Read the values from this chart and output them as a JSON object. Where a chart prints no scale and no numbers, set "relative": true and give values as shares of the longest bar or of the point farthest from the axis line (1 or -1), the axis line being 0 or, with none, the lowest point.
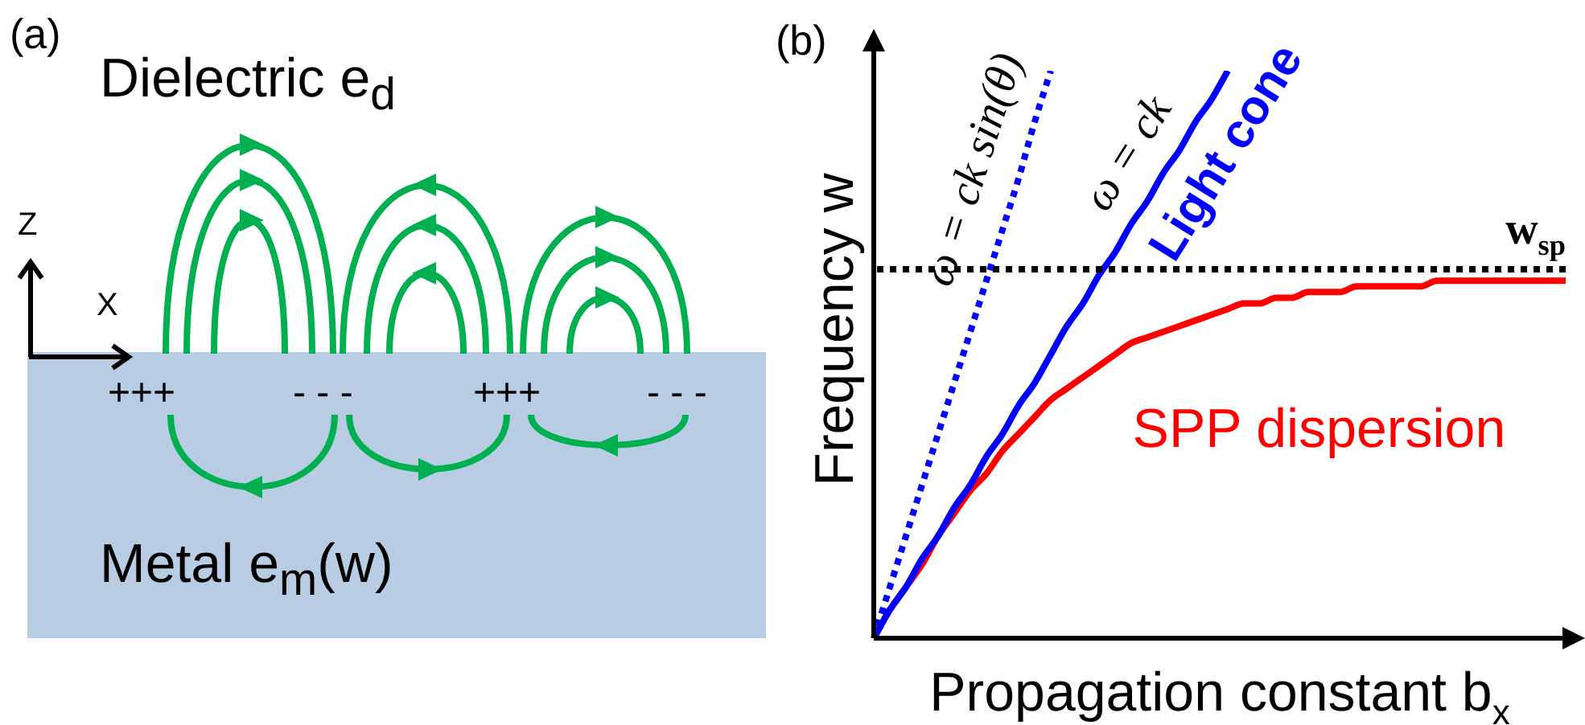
{
  "chart_data": [
    {
      "type": "other",
      "title": "(a)",
      "annotations": [
        "Dielectric e$_{d}$",
        "Metal e$_{m}$(w)",
        "+++",
        "- - -",
        "+++",
        "- - -",
        "Z",
        "X"
      ]
    },
    {
      "type": "line",
      "title": "(b)",
      "xlabel": "Propagation constant b$_{x}$",
      "ylabel": "Frequency w",
      "relative": true,
      "marker": "none",
      "categories": [
        null,
        null,
        null,
        null,
        null,
        null,
        null,
        null,
        null,
        null,
        null,
        null,
        null,
        null,
        null,
        null,
        null,
        null,
        null,
        null,
        null,
        null,
        null,
        null,
        null,
        null,
        null,
        null,
        null,
        null,
        null,
        null,
        null,
        null,
        null,
        null,
        null,
        null,
        null,
        null,
        null,
        null,
        null,
        null
      ],
      "series": [
        {
          "color": "#0000ff",
          "line_style": "dotted",
          "values": [
            0,
            0.09,
            0.18,
            0.27,
            0.36,
            0.45,
            0.54,
            0.63,
            0.72,
            0.81,
            0.91,
            1.0,
            null,
            null,
            null,
            null,
            null,
            null,
            null,
            null,
            null,
            null,
            null,
            null,
            null,
            null,
            null,
            null,
            null,
            null,
            null,
            null,
            null,
            null,
            null,
            null,
            null,
            null,
            null,
            null,
            null,
            null,
            null,
            null
          ]
        },
        {
          "name": "Light cone",
          "color": "#0000ff",
          "line_style": "solid",
          "values": [
            0,
            0.05,
            0.09,
            0.14,
            0.18,
            0.23,
            0.27,
            0.32,
            0.36,
            0.41,
            0.45,
            0.5,
            0.55,
            0.59,
            0.64,
            0.68,
            0.73,
            0.77,
            0.82,
            0.86,
            0.91,
            0.95,
            1.0,
            null,
            null,
            null,
            null,
            null,
            null,
            null,
            null,
            null,
            null,
            null,
            null,
            null,
            null,
            null,
            null,
            null,
            null,
            null,
            null,
            null
          ]
        },
        {
          "name": "SPP dispersion",
          "color": "#ff0000",
          "line_style": "solid",
          "values": [
            0,
            0.05,
            0.09,
            0.13,
            0.18,
            0.22,
            0.26,
            0.29,
            0.33,
            0.36,
            0.39,
            0.42,
            0.44,
            0.46,
            0.48,
            0.5,
            0.52,
            0.53,
            0.54,
            0.55,
            0.56,
            0.57,
            0.58,
            0.59,
            0.59,
            0.6,
            0.6,
            0.61,
            0.61,
            0.61,
            0.62,
            0.62,
            0.62,
            0.62,
            0.62,
            0.63,
            0.63,
            0.63,
            0.63,
            0.63,
            0.63,
            0.63,
            0.63,
            0.63
          ]
        }
      ],
      "ref_lines": [
        {
          "axis": "y",
          "value": 0.65,
          "label": "w$_{sp}$",
          "color": "#000000",
          "line_style": "dotted"
        }
      ],
      "annotations": [
        "ω = ck sin(θ)",
        "ω = ck"
      ]
    }
  ]
}
